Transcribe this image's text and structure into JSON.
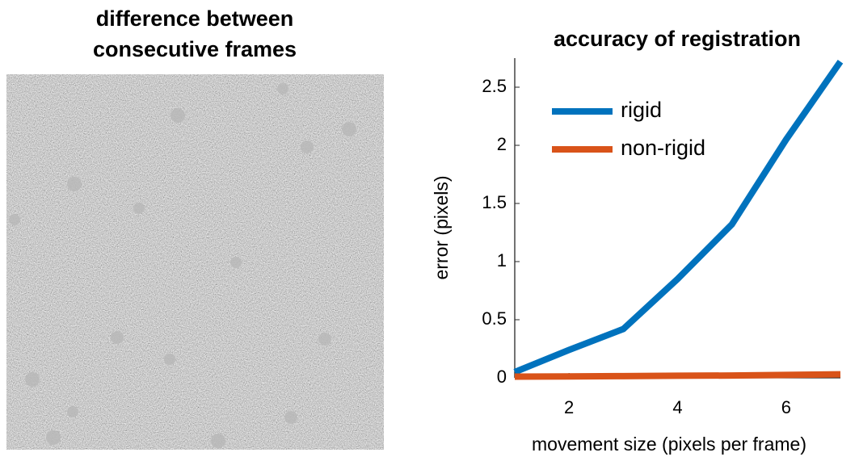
{
  "image_panel": {
    "title": [
      "difference between",
      "consecutive frames"
    ]
  },
  "chart_data": {
    "type": "line",
    "title": "accuracy of registration",
    "x_label": "movement size (pixels per frame)",
    "y_label": "error (pixels)",
    "x": [
      1,
      2,
      3,
      4,
      5,
      6,
      7
    ],
    "series": [
      {
        "name": "rigid",
        "color": "#0072bd",
        "values": [
          0.05,
          0.24,
          0.42,
          0.85,
          1.32,
          2.05,
          2.72
        ]
      },
      {
        "name": "non-rigid",
        "color": "#d95319",
        "values": [
          0.01,
          0.012,
          0.015,
          0.018,
          0.02,
          0.025,
          0.03
        ]
      }
    ],
    "xlim": [
      1,
      7
    ],
    "xticks": [
      2,
      4,
      6
    ],
    "ylim": [
      0,
      2.75
    ],
    "yticks": [
      0,
      0.5,
      1,
      1.5,
      2,
      2.5
    ],
    "legend": "upper left",
    "grid": false
  }
}
